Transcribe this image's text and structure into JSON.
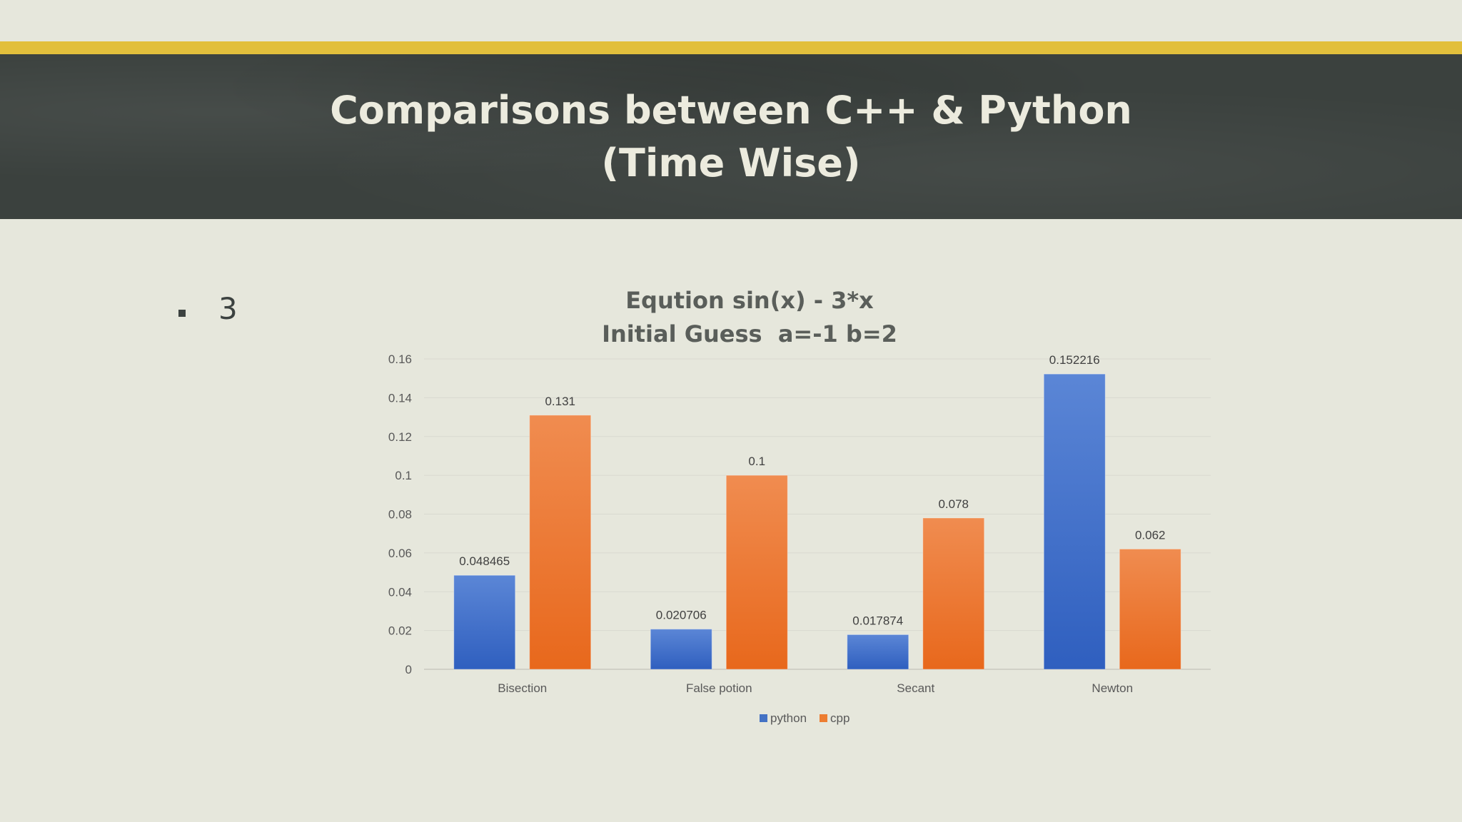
{
  "slide": {
    "title_line1": "Comparisons between C++ & Python",
    "title_line2": "(Time Wise)",
    "bullet_text": "3"
  },
  "colors": {
    "accent_bar": "#e2bf3c",
    "header_band": "#3b413e",
    "background": "#e6e7dc",
    "python_series": "#4472c4",
    "cpp_series": "#ed7d31"
  },
  "chart_data": {
    "type": "bar",
    "title_line1": "Eqution sin(x) - 3*x",
    "title_line2": "Initial Guess  a=-1 b=2",
    "categories": [
      "Bisection",
      "False potion",
      "Secant",
      "Newton"
    ],
    "series": [
      {
        "name": "python",
        "values": [
          0.048465,
          0.020706,
          0.017874,
          0.152216
        ],
        "labels": [
          "0.048465",
          "0.020706",
          "0.017874",
          "0.152216"
        ]
      },
      {
        "name": "cpp",
        "values": [
          0.131,
          0.1,
          0.078,
          0.062
        ],
        "labels": [
          "0.131",
          "0.1",
          "0.078",
          "0.062"
        ]
      }
    ],
    "yticks": [
      "0",
      "0.02",
      "0.04",
      "0.06",
      "0.08",
      "0.1",
      "0.12",
      "0.14",
      "0.16"
    ],
    "ylim": [
      0,
      0.16
    ],
    "xlabel": "",
    "ylabel": "",
    "grid": true,
    "legend_position": "bottom"
  }
}
